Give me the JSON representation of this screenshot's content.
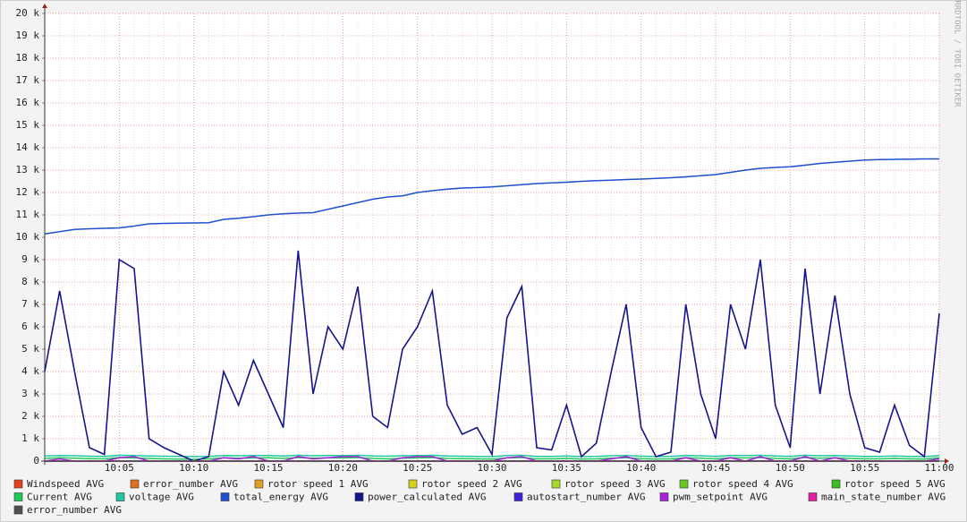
{
  "chart_data": {
    "type": "line",
    "watermark": "RRDTOOL / TOBI OETIKER",
    "x": [
      "10:00",
      "10:01",
      "10:02",
      "10:03",
      "10:04",
      "10:05",
      "10:06",
      "10:07",
      "10:08",
      "10:09",
      "10:10",
      "10:11",
      "10:12",
      "10:13",
      "10:14",
      "10:15",
      "10:16",
      "10:17",
      "10:18",
      "10:19",
      "10:20",
      "10:21",
      "10:22",
      "10:23",
      "10:24",
      "10:25",
      "10:26",
      "10:27",
      "10:28",
      "10:29",
      "10:30",
      "10:31",
      "10:32",
      "10:33",
      "10:34",
      "10:35",
      "10:36",
      "10:37",
      "10:38",
      "10:39",
      "10:40",
      "10:41",
      "10:42",
      "10:43",
      "10:44",
      "10:45",
      "10:46",
      "10:47",
      "10:48",
      "10:49",
      "10:50",
      "10:51",
      "10:52",
      "10:53",
      "10:54",
      "10:55",
      "10:56",
      "10:57",
      "10:58",
      "10:59",
      "11:00"
    ],
    "xticks": [
      "10:05",
      "10:10",
      "10:15",
      "10:20",
      "10:25",
      "10:30",
      "10:35",
      "10:40",
      "10:45",
      "10:50",
      "10:55",
      "11:00"
    ],
    "ylim": [
      0,
      20000
    ],
    "yticks": [
      0,
      {
        "value": 1000,
        "label": "1 k"
      },
      {
        "value": 2000,
        "label": "2 k"
      },
      {
        "value": 3000,
        "label": "3 k"
      },
      {
        "value": 4000,
        "label": "4 k"
      },
      {
        "value": 5000,
        "label": "5 k"
      },
      {
        "value": 6000,
        "label": "6 k"
      },
      {
        "value": 7000,
        "label": "7 k"
      },
      {
        "value": 8000,
        "label": "8 k"
      },
      {
        "value": 9000,
        "label": "9 k"
      },
      {
        "value": 10000,
        "label": "10 k"
      },
      {
        "value": 11000,
        "label": "11 k"
      },
      {
        "value": 12000,
        "label": "12 k"
      },
      {
        "value": 13000,
        "label": "13 k"
      },
      {
        "value": 14000,
        "label": "14 k"
      },
      {
        "value": 15000,
        "label": "15 k"
      },
      {
        "value": 16000,
        "label": "16 k"
      },
      {
        "value": 17000,
        "label": "17 k"
      },
      {
        "value": 18000,
        "label": "18 k"
      },
      {
        "value": 19000,
        "label": "19 k"
      },
      {
        "value": 20000,
        "label": "20 k"
      }
    ],
    "grid": true,
    "legend": "bottom",
    "series": [
      {
        "name": "Windspeed AVG",
        "color": "#e0401c",
        "values": [
          0,
          0,
          0,
          0,
          0,
          0,
          0,
          0,
          0,
          0,
          0,
          0,
          0,
          0,
          0,
          0,
          0,
          0,
          0,
          0,
          0,
          0,
          0,
          0,
          0,
          0,
          0,
          0,
          0,
          0,
          0,
          0,
          0,
          0,
          0,
          0,
          0,
          0,
          0,
          0,
          0,
          0,
          0,
          0,
          0,
          0,
          0,
          0,
          0,
          0,
          0,
          0,
          0,
          0,
          0,
          0,
          0,
          0,
          0,
          0,
          0
        ]
      },
      {
        "name": "error_number AVG",
        "color": "#e07020",
        "values": [
          0,
          0,
          0,
          0,
          0,
          0,
          0,
          0,
          0,
          0,
          0,
          0,
          0,
          0,
          0,
          0,
          0,
          0,
          0,
          0,
          0,
          0,
          0,
          0,
          0,
          0,
          0,
          0,
          0,
          0,
          0,
          0,
          0,
          0,
          0,
          0,
          0,
          0,
          0,
          0,
          0,
          0,
          0,
          0,
          0,
          0,
          0,
          0,
          0,
          0,
          0,
          0,
          0,
          0,
          0,
          0,
          0,
          0,
          0,
          0,
          0
        ]
      },
      {
        "name": "rotor speed 1 AVG",
        "color": "#e0a020",
        "values": [
          0,
          0,
          0,
          0,
          0,
          0,
          0,
          0,
          0,
          0,
          0,
          0,
          0,
          0,
          0,
          0,
          0,
          0,
          0,
          0,
          0,
          0,
          0,
          0,
          0,
          0,
          0,
          0,
          0,
          0,
          0,
          0,
          0,
          0,
          0,
          0,
          0,
          0,
          0,
          0,
          0,
          0,
          0,
          0,
          0,
          0,
          0,
          0,
          0,
          0,
          0,
          0,
          0,
          0,
          0,
          0,
          0,
          0,
          0,
          0,
          0
        ]
      },
      {
        "name": "rotor speed 2 AVG",
        "color": "#d8d020",
        "values": [
          0,
          0,
          0,
          0,
          0,
          0,
          0,
          0,
          0,
          0,
          0,
          0,
          0,
          0,
          0,
          0,
          0,
          0,
          0,
          0,
          0,
          0,
          0,
          0,
          0,
          0,
          0,
          0,
          0,
          0,
          0,
          0,
          0,
          0,
          0,
          0,
          0,
          0,
          0,
          0,
          0,
          0,
          0,
          0,
          0,
          0,
          0,
          0,
          0,
          0,
          0,
          0,
          0,
          0,
          0,
          0,
          0,
          0,
          0,
          0,
          0
        ]
      },
      {
        "name": "rotor speed 3 AVG",
        "color": "#a8d828",
        "values": [
          0,
          0,
          0,
          0,
          0,
          0,
          0,
          0,
          0,
          0,
          0,
          0,
          0,
          0,
          0,
          0,
          0,
          0,
          0,
          0,
          0,
          0,
          0,
          0,
          0,
          0,
          0,
          0,
          0,
          0,
          0,
          0,
          0,
          0,
          0,
          0,
          0,
          0,
          0,
          0,
          0,
          0,
          0,
          0,
          0,
          0,
          0,
          0,
          0,
          0,
          0,
          0,
          0,
          0,
          0,
          0,
          0,
          0,
          0,
          0,
          0
        ]
      },
      {
        "name": "rotor speed 4 AVG",
        "color": "#68c820",
        "values": [
          0,
          0,
          0,
          0,
          0,
          0,
          0,
          0,
          0,
          0,
          0,
          0,
          0,
          0,
          0,
          0,
          0,
          0,
          0,
          0,
          0,
          0,
          0,
          0,
          0,
          0,
          0,
          0,
          0,
          0,
          0,
          0,
          0,
          0,
          0,
          0,
          0,
          0,
          0,
          0,
          0,
          0,
          0,
          0,
          0,
          0,
          0,
          0,
          0,
          0,
          0,
          0,
          0,
          0,
          0,
          0,
          0,
          0,
          0,
          0,
          0
        ]
      },
      {
        "name": "rotor speed 5 AVG",
        "color": "#38c020",
        "values": [
          0,
          0,
          0,
          0,
          0,
          0,
          0,
          0,
          0,
          0,
          0,
          0,
          0,
          0,
          0,
          0,
          0,
          0,
          0,
          0,
          0,
          0,
          0,
          0,
          0,
          0,
          0,
          0,
          0,
          0,
          0,
          0,
          0,
          0,
          0,
          0,
          0,
          0,
          0,
          0,
          0,
          0,
          0,
          0,
          0,
          0,
          0,
          0,
          0,
          0,
          0,
          0,
          0,
          0,
          0,
          0,
          0,
          0,
          0,
          0,
          0
        ]
      },
      {
        "name": "Current AVG",
        "color": "#20c858",
        "values": [
          120,
          150,
          130,
          110,
          100,
          160,
          140,
          120,
          100,
          90,
          80,
          100,
          150,
          130,
          140,
          150,
          120,
          160,
          130,
          150,
          140,
          160,
          120,
          100,
          130,
          140,
          160,
          120,
          110,
          100,
          90,
          140,
          160,
          100,
          100,
          120,
          90,
          100,
          130,
          150,
          110,
          90,
          100,
          150,
          130,
          100,
          150,
          140,
          160,
          120,
          100,
          160,
          130,
          150,
          120,
          100,
          100,
          120,
          100,
          90,
          150
        ]
      },
      {
        "name": "voltage AVG",
        "color": "#20c8a0",
        "values": [
          230,
          250,
          240,
          220,
          210,
          260,
          250,
          230,
          220,
          210,
          200,
          210,
          250,
          240,
          250,
          250,
          230,
          260,
          240,
          250,
          250,
          260,
          230,
          220,
          240,
          250,
          260,
          230,
          220,
          210,
          200,
          250,
          260,
          210,
          210,
          230,
          200,
          210,
          240,
          250,
          220,
          200,
          210,
          250,
          240,
          210,
          250,
          250,
          260,
          230,
          210,
          260,
          240,
          250,
          230,
          210,
          210,
          230,
          210,
          200,
          250
        ]
      },
      {
        "name": "total_energy AVG",
        "color": "#2050d0",
        "values": [
          10150,
          10250,
          10350,
          10380,
          10400,
          10420,
          10500,
          10600,
          10620,
          10630,
          10640,
          10650,
          10800,
          10850,
          10920,
          11000,
          11050,
          11080,
          11100,
          11250,
          11400,
          11550,
          11700,
          11800,
          11850,
          12000,
          12080,
          12150,
          12200,
          12220,
          12250,
          12300,
          12350,
          12400,
          12430,
          12460,
          12500,
          12530,
          12550,
          12580,
          12600,
          12630,
          12660,
          12700,
          12750,
          12800,
          12900,
          13000,
          13080,
          13120,
          13150,
          13220,
          13300,
          13350,
          13400,
          13450,
          13470,
          13480,
          13490,
          13500,
          13500
        ]
      },
      {
        "name": "power_calculated AVG",
        "color": "#14148c",
        "values": [
          4000,
          7600,
          4000,
          600,
          300,
          9000,
          8600,
          1000,
          600,
          300,
          0,
          200,
          4000,
          2500,
          4500,
          3000,
          1500,
          9400,
          3000,
          6000,
          5000,
          7800,
          2000,
          1500,
          5000,
          6000,
          7600,
          2500,
          1200,
          1500,
          300,
          6400,
          7800,
          600,
          500,
          2500,
          200,
          800,
          4000,
          7000,
          1500,
          200,
          400,
          7000,
          3000,
          1000,
          7000,
          5000,
          9000,
          2500,
          600,
          8600,
          3000,
          7400,
          3000,
          600,
          400,
          2500,
          700,
          200,
          6600
        ]
      },
      {
        "name": "autostart_number AVG",
        "color": "#4020d8",
        "values": [
          0,
          0,
          0,
          0,
          0,
          0,
          0,
          0,
          0,
          0,
          0,
          0,
          0,
          0,
          0,
          0,
          0,
          0,
          0,
          0,
          0,
          0,
          0,
          0,
          0,
          0,
          0,
          0,
          0,
          0,
          0,
          0,
          0,
          0,
          0,
          0,
          0,
          0,
          0,
          0,
          0,
          0,
          0,
          0,
          0,
          0,
          0,
          0,
          0,
          0,
          0,
          0,
          0,
          0,
          0,
          0,
          0,
          0,
          0,
          0,
          0
        ]
      },
      {
        "name": "pwm_setpoint AVG",
        "color": "#a820d8",
        "values": [
          0,
          100,
          0,
          0,
          0,
          150,
          200,
          0,
          0,
          0,
          0,
          0,
          150,
          100,
          200,
          0,
          0,
          200,
          100,
          150,
          200,
          200,
          0,
          0,
          150,
          200,
          200,
          0,
          0,
          0,
          0,
          150,
          200,
          0,
          0,
          0,
          0,
          0,
          100,
          200,
          0,
          0,
          0,
          150,
          0,
          0,
          150,
          0,
          200,
          0,
          0,
          200,
          0,
          150,
          0,
          0,
          0,
          0,
          0,
          0,
          100
        ]
      },
      {
        "name": "main_state_number AVG",
        "color": "#e020a0",
        "values": [
          0,
          0,
          0,
          0,
          0,
          0,
          0,
          0,
          0,
          0,
          0,
          0,
          0,
          0,
          0,
          0,
          0,
          0,
          0,
          0,
          0,
          0,
          0,
          0,
          0,
          0,
          0,
          0,
          0,
          0,
          0,
          0,
          0,
          0,
          0,
          0,
          0,
          0,
          0,
          0,
          0,
          0,
          0,
          0,
          0,
          0,
          0,
          0,
          0,
          0,
          0,
          0,
          0,
          0,
          0,
          0,
          0,
          0,
          0,
          0,
          0
        ]
      },
      {
        "name": "error_number AVG",
        "color": "#505050",
        "values": [
          0,
          0,
          0,
          0,
          0,
          0,
          0,
          0,
          0,
          0,
          0,
          0,
          0,
          0,
          0,
          0,
          0,
          0,
          0,
          0,
          0,
          0,
          0,
          0,
          0,
          0,
          0,
          0,
          0,
          0,
          0,
          0,
          0,
          0,
          0,
          0,
          0,
          0,
          0,
          0,
          0,
          0,
          0,
          0,
          0,
          0,
          0,
          0,
          0,
          0,
          0,
          0,
          0,
          0,
          0,
          0,
          0,
          0,
          0,
          0,
          0
        ]
      }
    ]
  }
}
